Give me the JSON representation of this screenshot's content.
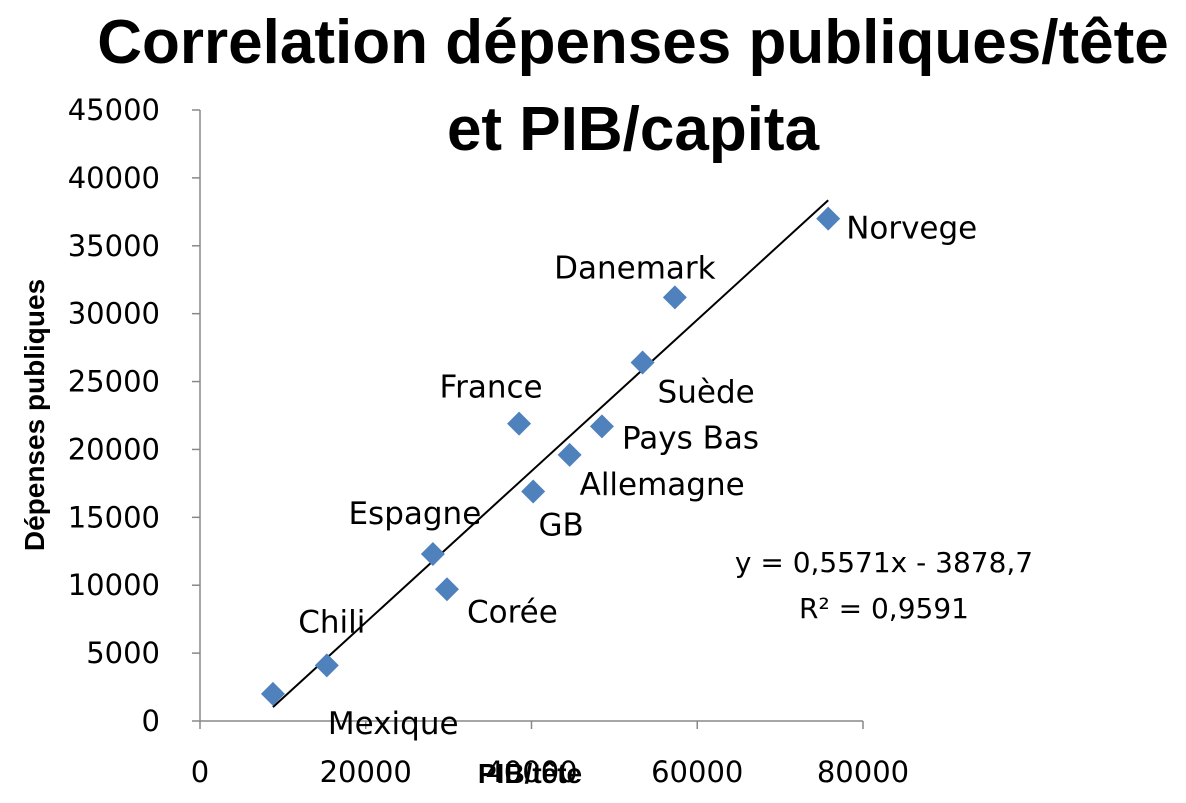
{
  "chart_data": {
    "type": "scatter",
    "title_lines": [
      "Correlation dépenses publiques/tête",
      "et PIB/capita"
    ],
    "xlabel": "PIB/tête",
    "ylabel": "Dépenses publiques",
    "xlim": [
      0,
      80000
    ],
    "ylim": [
      0,
      45000
    ],
    "xticks": [
      0,
      20000,
      40000,
      60000,
      80000
    ],
    "yticks": [
      0,
      5000,
      10000,
      15000,
      20000,
      25000,
      30000,
      35000,
      40000,
      45000
    ],
    "grid": false,
    "marker": "diamond",
    "marker_color": "#4F81BD",
    "points": [
      {
        "label": "Mexique",
        "x": 8800,
        "y": 2000
      },
      {
        "label": "Chili",
        "x": 15300,
        "y": 4100
      },
      {
        "label": "Espagne",
        "x": 28100,
        "y": 12300
      },
      {
        "label": "Corée",
        "x": 29800,
        "y": 9700
      },
      {
        "label": "France",
        "x": 38500,
        "y": 21900
      },
      {
        "label": "GB",
        "x": 40200,
        "y": 16900
      },
      {
        "label": "Allemagne",
        "x": 44600,
        "y": 19600
      },
      {
        "label": "Pays Bas",
        "x": 48500,
        "y": 21700
      },
      {
        "label": "Suède",
        "x": 53400,
        "y": 26400
      },
      {
        "label": "Danemark",
        "x": 57300,
        "y": 31200
      },
      {
        "label": "Norvege",
        "x": 75800,
        "y": 37000
      }
    ],
    "trendline": {
      "slope": 0.5571,
      "intercept": -3878.7,
      "x_range": [
        8800,
        75800
      ],
      "color": "#000000",
      "equation": "y = 0,5571x - 3878,7",
      "r_squared": "R² = 0,9591"
    }
  }
}
